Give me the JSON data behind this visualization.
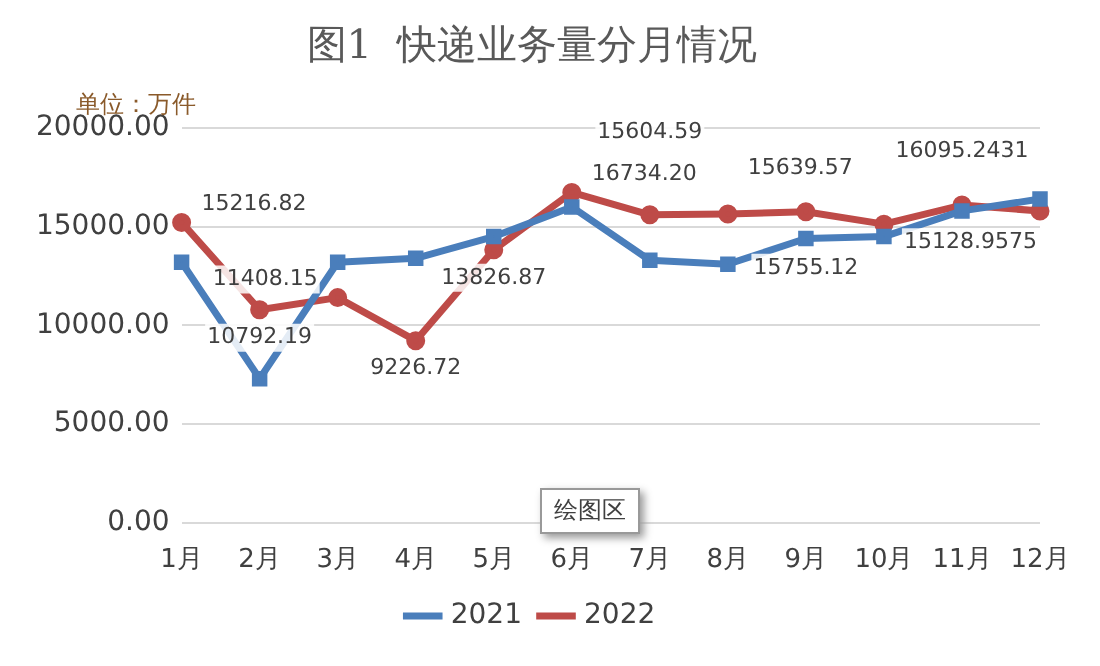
{
  "chart_data": {
    "type": "line",
    "title": "图1  快递业务量分月情况",
    "ylabel": "单位：万件",
    "categories": [
      "1月",
      "2月",
      "3月",
      "4月",
      "5月",
      "6月",
      "7月",
      "8月",
      "9月",
      "10月",
      "11月",
      "12月"
    ],
    "series": [
      {
        "name": "2021",
        "color": "#4a7ebb",
        "marker": "square",
        "values": [
          13200,
          7300,
          13200,
          13400,
          14500,
          16000,
          13300,
          13100,
          14400,
          14500,
          15800,
          16400
        ]
      },
      {
        "name": "2022",
        "color": "#be4b48",
        "marker": "circle",
        "values": [
          15216.82,
          10792.19,
          11408.15,
          9226.72,
          13826.87,
          16734.2,
          15604.59,
          15639.57,
          15755.12,
          15128.9575,
          16095.2431,
          15800
        ],
        "value_labels": [
          "15216.82",
          "10792.19",
          "11408.15",
          "9226.72",
          "13826.87",
          "16734.20",
          "15604.59",
          "15639.57",
          "15755.12",
          "15128.9575",
          "16095.2431",
          null
        ]
      }
    ],
    "ylim": [
      0,
      20000
    ],
    "yticks": [
      {
        "value": 0,
        "label": "0.00"
      },
      {
        "value": 5000,
        "label": "5000.00"
      },
      {
        "value": 10000,
        "label": "10000.00"
      },
      {
        "value": 15000,
        "label": "15000.00"
      },
      {
        "value": 20000,
        "label": "20000.00"
      }
    ],
    "grid": "y",
    "legend": "bottom",
    "line_style": "solid",
    "annotations": [
      "绘图区"
    ]
  }
}
